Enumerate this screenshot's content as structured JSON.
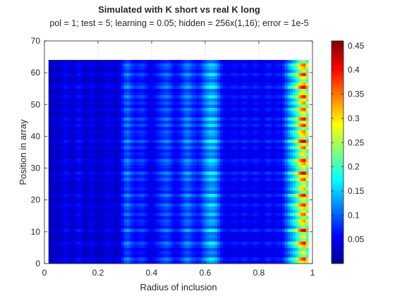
{
  "chart_data": {
    "type": "heatmap",
    "title": "Simulated with K short vs real K long",
    "subtitle": "pol = 1; test = 5; learning = 0.05; hidden = 256x(1,16); error = 1e-5",
    "xlabel": "Radius of inclusion",
    "ylabel": "Position in array",
    "xlim": [
      0,
      1
    ],
    "ylim": [
      0,
      70
    ],
    "x_ticks": [
      "0",
      "0.2",
      "0.4",
      "0.6",
      "0.8",
      "1"
    ],
    "y_ticks": [
      "0",
      "10",
      "20",
      "30",
      "40",
      "50",
      "60",
      "70"
    ],
    "colormap": "jet",
    "clim": [
      0,
      0.46
    ],
    "colorbar_ticks": [
      "0.05",
      "0.1",
      "0.15",
      "0.2",
      "0.25",
      "0.3",
      "0.35",
      "0.4",
      "0.45"
    ],
    "grid": true,
    "grid_columns": 100,
    "grid_rows": 64,
    "column_x_range": [
      0.02,
      0.98
    ],
    "row_y_range": [
      0.5,
      63.5
    ],
    "column_profile": [
      0.022,
      0.025,
      0.028,
      0.026,
      0.03,
      0.036,
      0.045,
      0.042,
      0.03,
      0.028,
      0.04,
      0.05,
      0.045,
      0.032,
      0.028,
      0.035,
      0.042,
      0.036,
      0.03,
      0.026,
      0.03,
      0.036,
      0.042,
      0.04,
      0.034,
      0.03,
      0.032,
      0.04,
      0.062,
      0.09,
      0.098,
      0.082,
      0.068,
      0.06,
      0.065,
      0.072,
      0.07,
      0.058,
      0.046,
      0.042,
      0.046,
      0.056,
      0.066,
      0.076,
      0.084,
      0.09,
      0.082,
      0.066,
      0.052,
      0.054,
      0.064,
      0.078,
      0.094,
      0.104,
      0.092,
      0.076,
      0.07,
      0.062,
      0.072,
      0.092,
      0.11,
      0.126,
      0.136,
      0.132,
      0.118,
      0.092,
      0.064,
      0.05,
      0.044,
      0.046,
      0.05,
      0.054,
      0.05,
      0.046,
      0.052,
      0.058,
      0.05,
      0.044,
      0.05,
      0.056,
      0.052,
      0.046,
      0.042,
      0.05,
      0.06,
      0.054,
      0.046,
      0.05,
      0.058,
      0.052,
      0.07,
      0.096,
      0.124,
      0.15,
      0.176,
      0.21,
      0.26,
      0.3,
      0.32,
      0.25
    ],
    "row_profile": [
      0.9,
      1.35,
      0.5,
      0.75,
      0.45,
      0.95,
      1.4,
      0.55,
      0.7,
      0.6,
      1.55,
      0.5,
      0.85,
      1.0,
      0.55,
      1.2,
      0.65,
      0.9,
      1.35,
      0.6,
      0.75,
      1.45,
      0.5,
      0.95,
      0.7,
      0.6,
      1.25,
      0.8,
      1.55,
      0.55,
      0.75,
      1.05,
      1.4,
      0.6,
      0.85,
      0.55,
      1.2,
      0.7,
      1.6,
      0.65,
      0.9,
      1.1,
      0.55,
      1.35,
      0.75,
      1.45,
      0.6,
      0.8,
      1.25,
      0.55,
      1.05,
      0.7,
      1.4,
      0.85,
      0.6,
      1.55,
      1.0,
      0.55,
      0.8,
      1.4,
      0.6,
      0.95,
      1.2,
      0.5
    ]
  }
}
